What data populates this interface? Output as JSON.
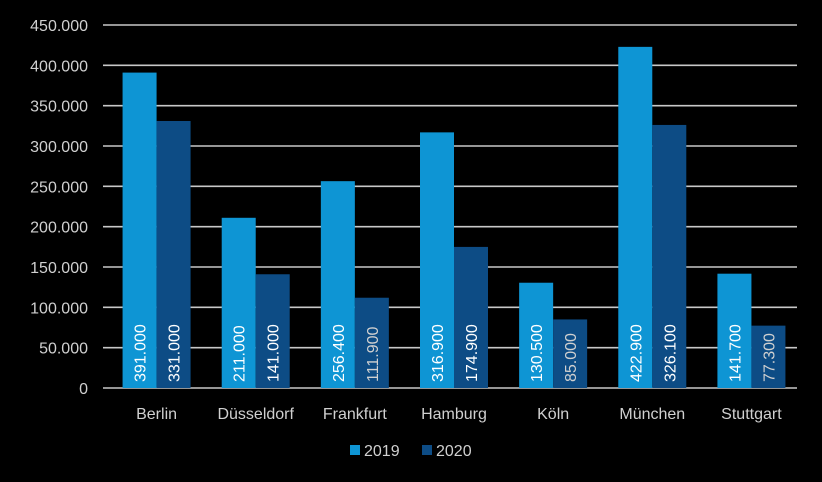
{
  "chart_data": {
    "type": "bar",
    "title": "",
    "xlabel": "",
    "ylabel": "",
    "categories": [
      "Berlin",
      "Düsseldorf",
      "Frankfurt",
      "Hamburg",
      "Köln",
      "München",
      "Stuttgart"
    ],
    "series": [
      {
        "name": "2019",
        "values": [
          391000,
          211000,
          256400,
          316900,
          130500,
          422900,
          141700
        ]
      },
      {
        "name": "2020",
        "values": [
          331000,
          141000,
          111900,
          174900,
          85000,
          326100,
          77300
        ]
      }
    ],
    "data_labels": {
      "2019": [
        "391.000",
        "211.000",
        "256.400",
        "316.900",
        "130.500",
        "422.900",
        "141.700"
      ],
      "2020": [
        "331.000",
        "141.000",
        "111.900",
        "174.900",
        "85.000",
        "326.100",
        "77.300"
      ]
    },
    "ylim": [
      0,
      450000
    ],
    "yticks": [
      0,
      50000,
      100000,
      150000,
      200000,
      250000,
      300000,
      350000,
      400000,
      450000
    ],
    "ytick_labels": [
      "0",
      "50.000",
      "100.000",
      "150.000",
      "200.000",
      "250.000",
      "300.000",
      "350.000",
      "400.000",
      "450.000"
    ],
    "grid": true,
    "legend_position": "bottom",
    "colors": {
      "2019": "#0e95d4",
      "2020": "#0d4c85",
      "background": "#000000",
      "grid": "#c8c8c8",
      "text": "#d0d0d0"
    }
  }
}
